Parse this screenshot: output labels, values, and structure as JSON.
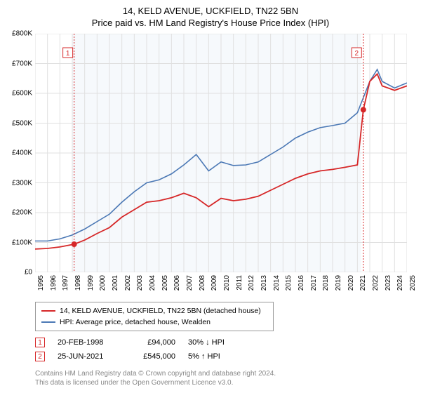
{
  "title_line1": "14, KELD AVENUE, UCKFIELD, TN22 5BN",
  "title_line2": "Price paid vs. HM Land Registry's House Price Index (HPI)",
  "chart": {
    "type": "line",
    "background_color": "#ffffff",
    "plot_shaded_bg": "#f6f9fc",
    "grid_color": "#e0e0e0",
    "ylim": [
      0,
      800000
    ],
    "ytick_step": 100000,
    "y_labels": [
      "£0",
      "£100K",
      "£200K",
      "£300K",
      "£400K",
      "£500K",
      "£600K",
      "£700K",
      "£800K"
    ],
    "xlim": [
      1995,
      2025
    ],
    "x_labels": [
      "1995",
      "1996",
      "1997",
      "1998",
      "1999",
      "2000",
      "2001",
      "2002",
      "2003",
      "2004",
      "2005",
      "2006",
      "2007",
      "2008",
      "2009",
      "2010",
      "2011",
      "2012",
      "2013",
      "2014",
      "2015",
      "2016",
      "2017",
      "2018",
      "2019",
      "2020",
      "2021",
      "2022",
      "2023",
      "2024",
      "2025"
    ],
    "series": [
      {
        "name": "red",
        "label": "14, KELD AVENUE, UCKFIELD, TN22 5BN (detached house)",
        "color": "#d62728",
        "line_width": 1.8,
        "data": [
          [
            1995,
            78000
          ],
          [
            1996,
            80000
          ],
          [
            1997,
            85000
          ],
          [
            1998.15,
            94000
          ],
          [
            1999,
            108000
          ],
          [
            2000,
            130000
          ],
          [
            2001,
            150000
          ],
          [
            2002,
            185000
          ],
          [
            2003,
            210000
          ],
          [
            2004,
            235000
          ],
          [
            2005,
            240000
          ],
          [
            2006,
            250000
          ],
          [
            2007,
            265000
          ],
          [
            2008,
            250000
          ],
          [
            2009,
            220000
          ],
          [
            2010,
            248000
          ],
          [
            2011,
            240000
          ],
          [
            2012,
            245000
          ],
          [
            2013,
            255000
          ],
          [
            2014,
            275000
          ],
          [
            2015,
            295000
          ],
          [
            2016,
            315000
          ],
          [
            2017,
            330000
          ],
          [
            2018,
            340000
          ],
          [
            2019,
            345000
          ],
          [
            2020,
            352000
          ],
          [
            2021,
            360000
          ],
          [
            2021.48,
            545000
          ],
          [
            2022,
            640000
          ],
          [
            2022.6,
            665000
          ],
          [
            2023,
            625000
          ],
          [
            2024,
            610000
          ],
          [
            2025,
            625000
          ]
        ]
      },
      {
        "name": "blue",
        "label": "HPI: Average price, detached house, Wealden",
        "color": "#4b78b5",
        "line_width": 1.6,
        "data": [
          [
            1995,
            105000
          ],
          [
            1996,
            105000
          ],
          [
            1997,
            112000
          ],
          [
            1998,
            125000
          ],
          [
            1999,
            145000
          ],
          [
            2000,
            170000
          ],
          [
            2001,
            195000
          ],
          [
            2002,
            235000
          ],
          [
            2003,
            270000
          ],
          [
            2004,
            300000
          ],
          [
            2005,
            310000
          ],
          [
            2006,
            330000
          ],
          [
            2007,
            360000
          ],
          [
            2008,
            395000
          ],
          [
            2009,
            340000
          ],
          [
            2010,
            370000
          ],
          [
            2011,
            358000
          ],
          [
            2012,
            360000
          ],
          [
            2013,
            370000
          ],
          [
            2014,
            395000
          ],
          [
            2015,
            420000
          ],
          [
            2016,
            450000
          ],
          [
            2017,
            470000
          ],
          [
            2018,
            485000
          ],
          [
            2019,
            492000
          ],
          [
            2020,
            500000
          ],
          [
            2021,
            535000
          ],
          [
            2022,
            640000
          ],
          [
            2022.6,
            680000
          ],
          [
            2023,
            640000
          ],
          [
            2024,
            618000
          ],
          [
            2025,
            635000
          ]
        ]
      }
    ],
    "markers": [
      {
        "n": "1",
        "x": 1998.15,
        "y": 94000,
        "color": "#d62728"
      },
      {
        "n": "2",
        "x": 2021.48,
        "y": 545000,
        "color": "#d62728"
      }
    ],
    "marker_boxes": [
      {
        "n": "1",
        "x": 1997.3
      },
      {
        "n": "2",
        "x": 2020.6
      }
    ]
  },
  "sales": [
    {
      "n": "1",
      "date": "20-FEB-1998",
      "price": "£94,000",
      "diff": "30% ↓ HPI"
    },
    {
      "n": "2",
      "date": "25-JUN-2021",
      "price": "£545,000",
      "diff": "5% ↑ HPI"
    }
  ],
  "footer_line1": "Contains HM Land Registry data © Crown copyright and database right 2024.",
  "footer_line2": "This data is licensed under the Open Government Licence v3.0."
}
